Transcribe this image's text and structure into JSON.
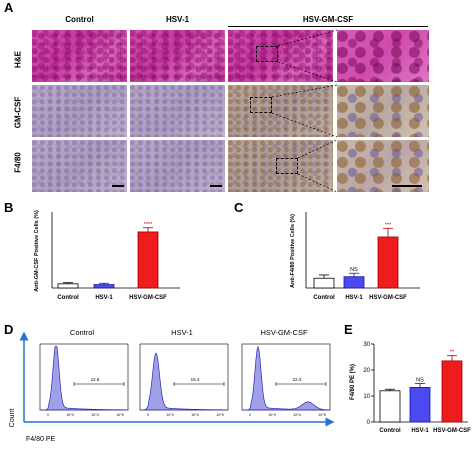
{
  "panels": {
    "A": "A",
    "B": "B",
    "C": "C",
    "D": "D",
    "E": "E"
  },
  "histology": {
    "columns": [
      "Control",
      "HSV-1",
      "HSV-GM-CSF"
    ],
    "rows": [
      "H&E",
      "GM-CSF",
      "F4/80"
    ]
  },
  "chart_data": [
    {
      "id": "B",
      "type": "bar",
      "ylabel": "Anti-GM-CSF Positive Cells (%)",
      "categories": [
        "Control",
        "HSV-1",
        "HSV-GM-CSF"
      ],
      "values": [
        2.2,
        1.8,
        29.5
      ],
      "errors": [
        0.6,
        0.7,
        2.2
      ],
      "significance": [
        "",
        "",
        "****"
      ],
      "ylim": [
        0,
        40
      ],
      "fills": [
        "#ffffff",
        "#4a4af0",
        "#ee1c1c"
      ],
      "strokes": [
        "#000000",
        "#1515a8",
        "#a00000"
      ]
    },
    {
      "id": "C",
      "type": "bar",
      "ylabel": "Anti-F4/80 Positive Cells (%)",
      "categories": [
        "Control",
        "HSV-1",
        "HSV-GM-CSF"
      ],
      "values": [
        4.5,
        5.2,
        23.5
      ],
      "errors": [
        1.5,
        1.6,
        4.0
      ],
      "significance": [
        "",
        "NS",
        "***"
      ],
      "ylim": [
        0,
        35
      ],
      "fills": [
        "#ffffff",
        "#4a4af0",
        "#ee1c1c"
      ],
      "strokes": [
        "#000000",
        "#1515a8",
        "#a00000"
      ]
    },
    {
      "id": "D",
      "type": "area",
      "ylabel": "Count",
      "xlabel": "F4/80 PE",
      "histograms": [
        {
          "title": "Control",
          "gate_value": "12.6"
        },
        {
          "title": "HSV-1",
          "gate_value": "15.4"
        },
        {
          "title": "HSV-GM-CSF",
          "gate_value": "22.3"
        }
      ],
      "tick_labels": [
        "0",
        "10^3",
        "10^4",
        "10^5"
      ],
      "fill": "#8080e0",
      "stroke": "#2a2ab0"
    },
    {
      "id": "E",
      "type": "bar",
      "ylabel": "F4/80 PE (%)",
      "categories": [
        "Control",
        "HSV-1",
        "HSV-GM-CSF"
      ],
      "values": [
        12.0,
        13.3,
        23.5
      ],
      "errors": [
        0.6,
        1.5,
        2.0
      ],
      "significance": [
        "",
        "NS",
        "**"
      ],
      "ylim": [
        0,
        30
      ],
      "yticks": [
        0,
        10,
        20,
        30
      ],
      "fills": [
        "#ffffff",
        "#4a4af0",
        "#ee1c1c"
      ],
      "strokes": [
        "#000000",
        "#1515a8",
        "#a00000"
      ]
    }
  ]
}
